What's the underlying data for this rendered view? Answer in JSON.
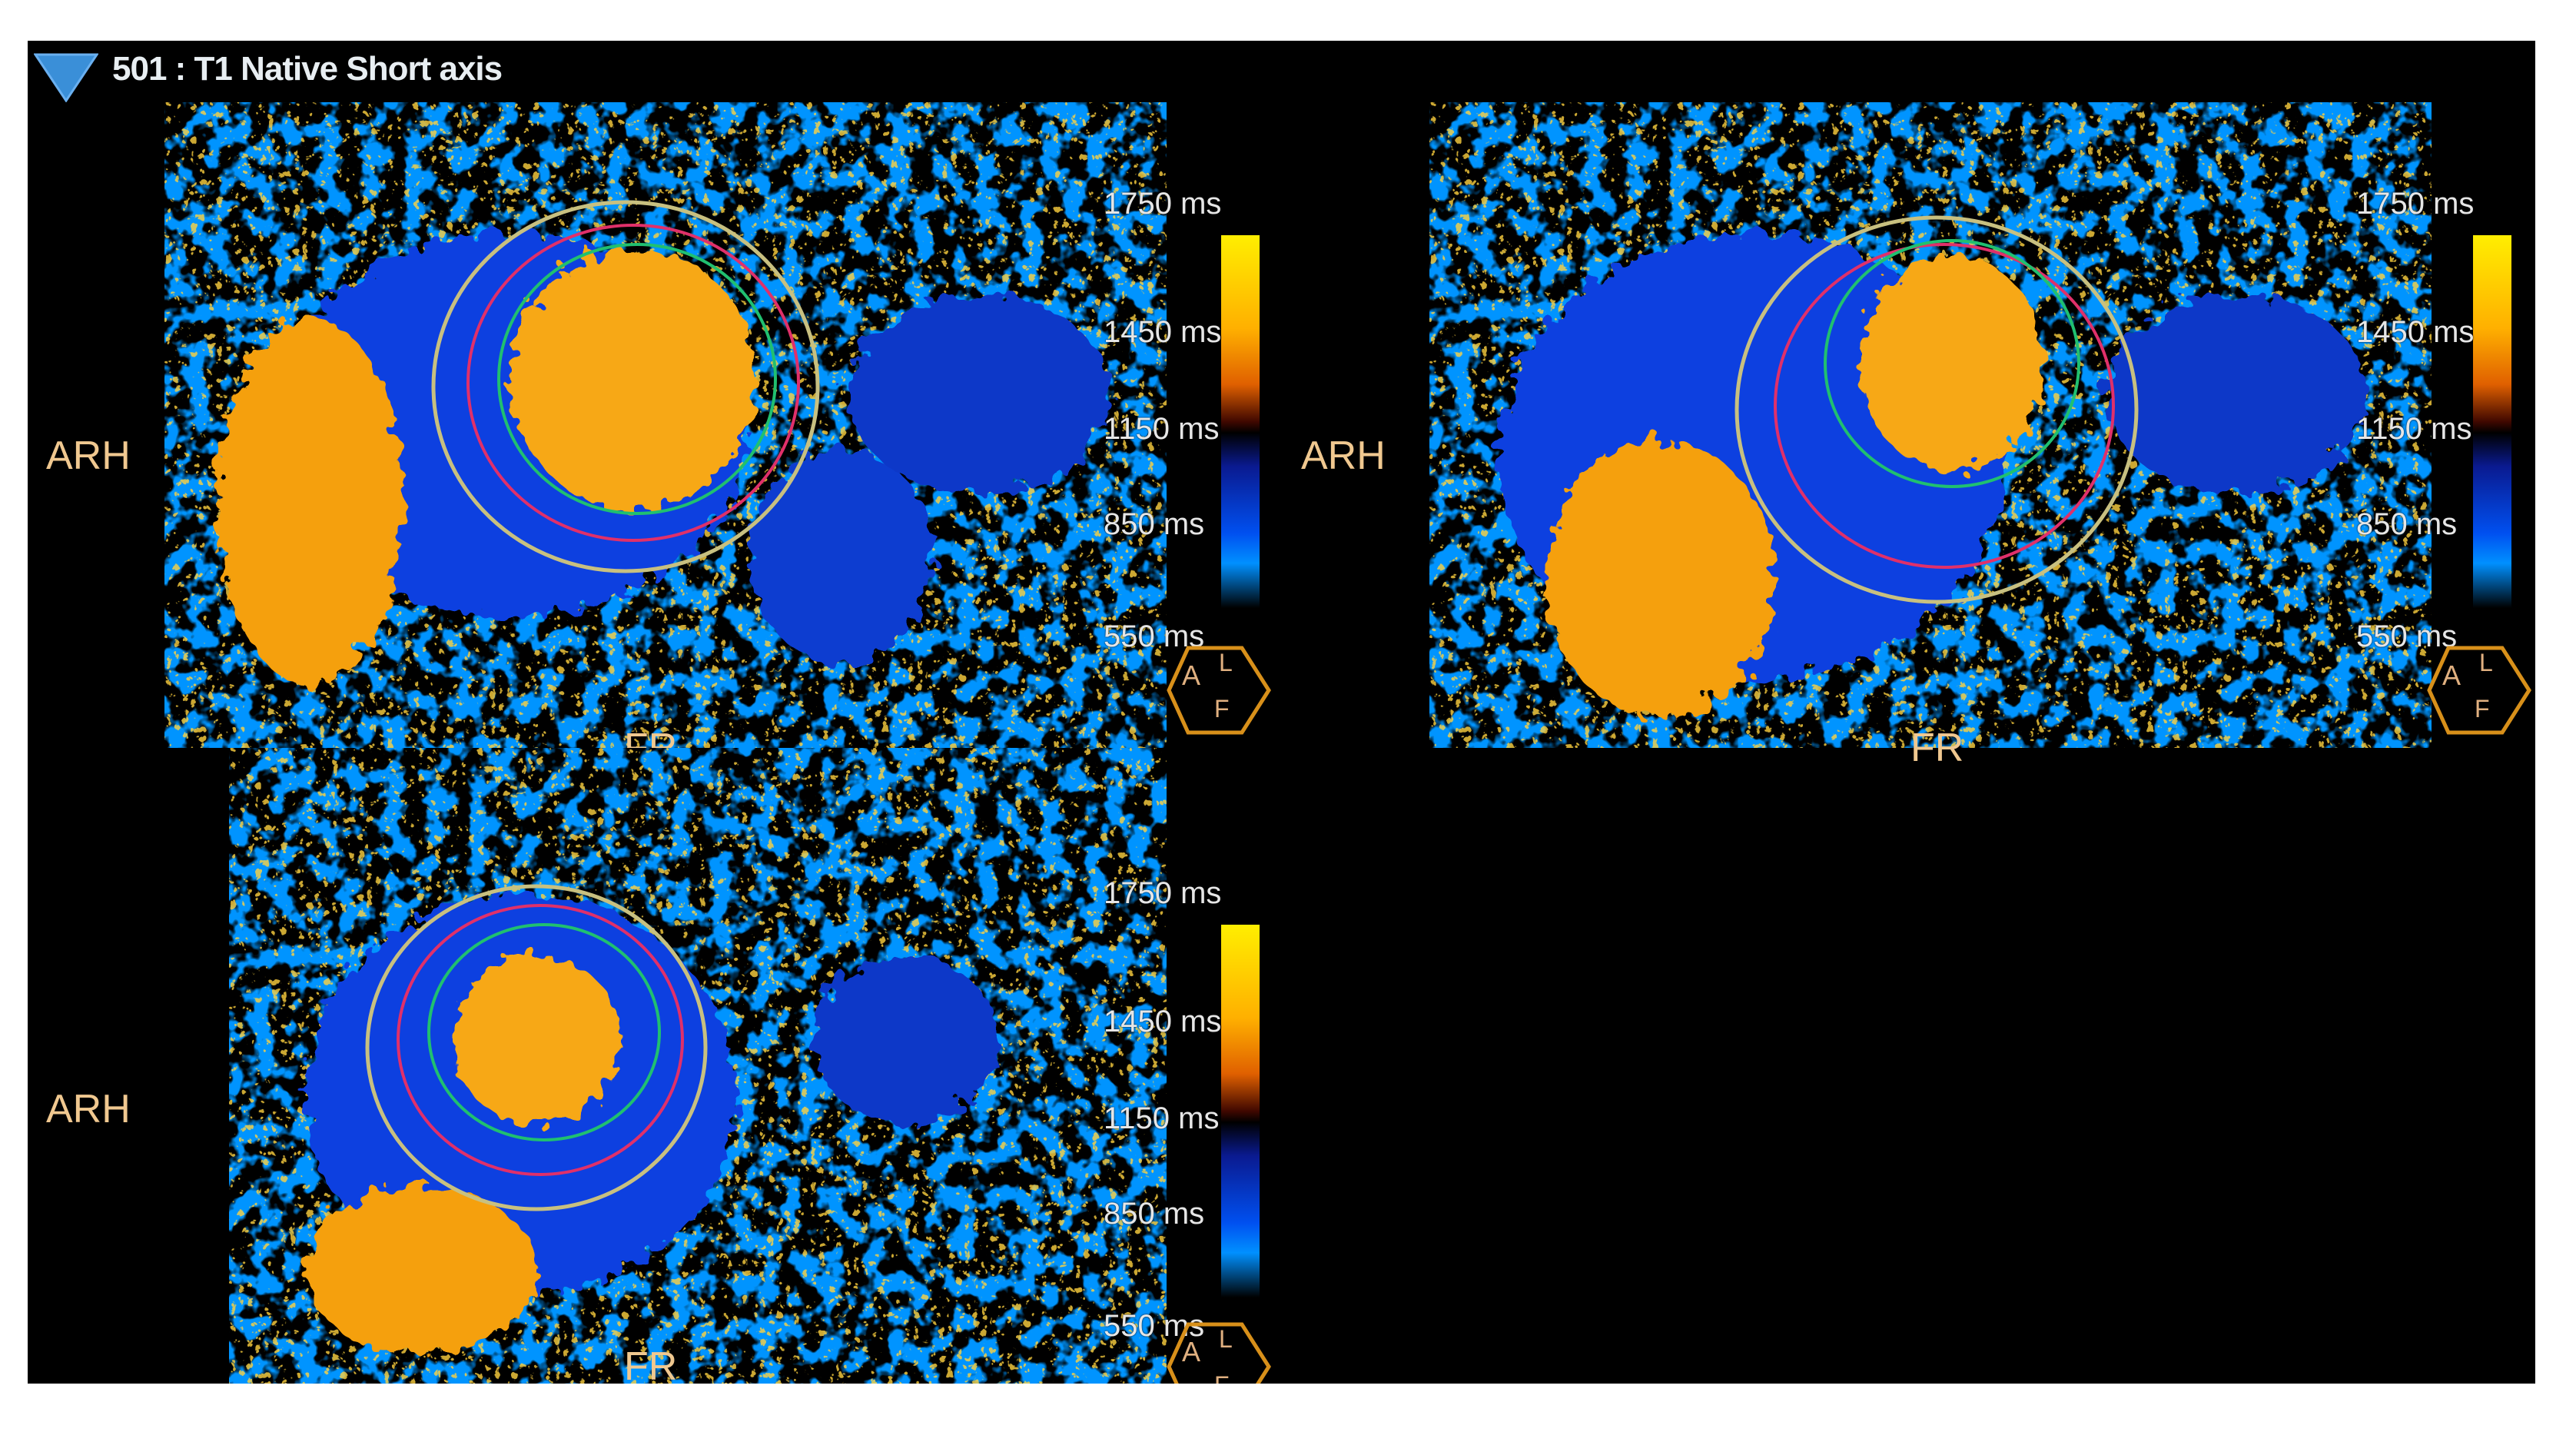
{
  "viewer": {
    "title": "501 : T1 Native Short axis",
    "collapse_icon": "triangle-down-icon",
    "accent_color": "#3a8fd8",
    "viewports": [
      {
        "left_label": "ARH",
        "bottom_label": "FR",
        "orientation_cube": [
          "A",
          "L",
          "F"
        ],
        "colorbar_ticks": [
          "1750 ms",
          "1450 ms",
          "1150 ms",
          "850 ms",
          "550 ms"
        ]
      },
      {
        "left_label": "ARH",
        "bottom_label": "FR",
        "orientation_cube": [
          "A",
          "L",
          "F"
        ],
        "colorbar_ticks": [
          "1750 ms",
          "1450 ms",
          "1150 ms",
          "850 ms",
          "550 ms"
        ]
      },
      {
        "left_label": "ARH",
        "bottom_label": "FR",
        "orientation_cube": [
          "A",
          "L",
          "F"
        ],
        "colorbar_ticks": [
          "1750 ms",
          "1450 ms",
          "1150 ms",
          "850 ms",
          "550 ms"
        ]
      }
    ],
    "colormap": {
      "high": "#ffee00",
      "mid_high": "#e06000",
      "mid_low": "#0a1a90",
      "low": "#0090ff"
    },
    "contour_colors": {
      "epicardium": "#c8c080",
      "mid": "#e0306a",
      "endocardium": "#20c070"
    }
  }
}
